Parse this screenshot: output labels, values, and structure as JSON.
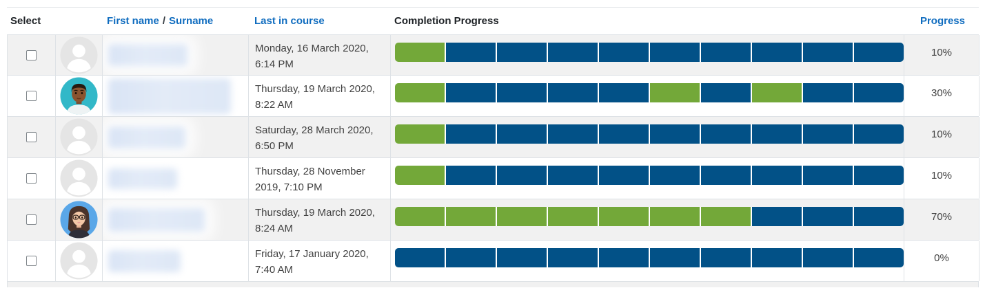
{
  "header": {
    "select": "Select",
    "first_name": "First name",
    "separator": "/",
    "surname": "Surname",
    "last_in_course": "Last in course",
    "completion_progress": "Completion Progress",
    "progress": "Progress"
  },
  "rows": [
    {
      "avatar": "default",
      "last_in_course": "Monday, 16 March 2020, 6:14 PM",
      "progress": "10%",
      "segments": [
        "completed",
        "future",
        "future",
        "future",
        "future",
        "future",
        "future",
        "future",
        "future",
        "future"
      ]
    },
    {
      "avatar": "man",
      "last_in_course": "Thursday, 19 March 2020, 8:22 AM",
      "progress": "30%",
      "segments": [
        "completed",
        "future",
        "future",
        "future",
        "future",
        "completed",
        "future",
        "completed",
        "future",
        "future"
      ]
    },
    {
      "avatar": "default",
      "last_in_course": "Saturday, 28 March 2020, 6:50 PM",
      "progress": "10%",
      "segments": [
        "completed",
        "future",
        "future",
        "future",
        "future",
        "future",
        "future",
        "future",
        "future",
        "future"
      ]
    },
    {
      "avatar": "default",
      "last_in_course": "Thursday, 28 November 2019, 7:10 PM",
      "progress": "10%",
      "segments": [
        "completed",
        "future",
        "future",
        "future",
        "future",
        "future",
        "future",
        "future",
        "future",
        "future"
      ]
    },
    {
      "avatar": "woman",
      "last_in_course": "Thursday, 19 March 2020, 8:24 AM",
      "progress": "70%",
      "segments": [
        "completed",
        "completed",
        "completed",
        "completed",
        "completed",
        "completed",
        "completed",
        "future",
        "future",
        "future"
      ]
    },
    {
      "avatar": "default",
      "last_in_course": "Friday, 17 January 2020, 7:40 AM",
      "progress": "0%",
      "segments": [
        "future",
        "future",
        "future",
        "future",
        "future",
        "future",
        "future",
        "future",
        "future",
        "future"
      ]
    }
  ],
  "colors": {
    "completed": "#73a839",
    "future_not_completed": "#025187",
    "link_blue": "#0f6cbf"
  }
}
